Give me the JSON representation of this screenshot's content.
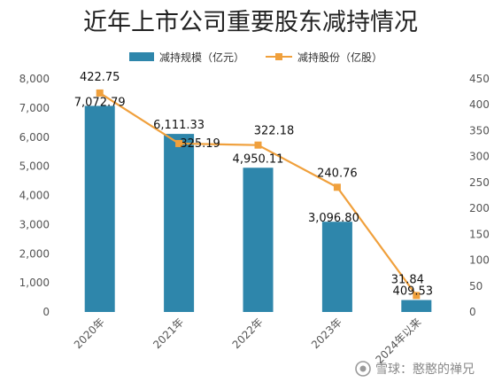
{
  "chart_data": {
    "type": "bar",
    "title": "近年上市公司重要股东减持情况",
    "categories": [
      "2020年",
      "2021年",
      "2022年",
      "2023年",
      "2024年以来"
    ],
    "series": [
      {
        "name": "减持规模（亿元）",
        "type": "bar",
        "axis": "left",
        "values": [
          7072.79,
          6111.33,
          4950.11,
          3096.8,
          409.53
        ],
        "labels": [
          "7,072.79",
          "6,111.33",
          "4,950.11",
          "3,096.80",
          "409.53"
        ],
        "color": "#2e86ab"
      },
      {
        "name": "减持股份（亿股）",
        "type": "line",
        "axis": "right",
        "values": [
          422.75,
          325.19,
          322.18,
          240.76,
          31.84
        ],
        "labels": [
          "422.75",
          "325.19",
          "322.18",
          "240.76",
          "31.84"
        ],
        "color": "#f0a03c"
      }
    ],
    "y_left": {
      "range": [
        0,
        8000
      ],
      "ticks": [
        "0",
        "1,000",
        "2,000",
        "3,000",
        "4,000",
        "5,000",
        "6,000",
        "7,000",
        "8,000"
      ]
    },
    "y_right": {
      "range": [
        0,
        450
      ],
      "ticks": [
        "0",
        "50",
        "100",
        "150",
        "200",
        "250",
        "300",
        "350",
        "400",
        "450"
      ]
    },
    "legend_position": "top",
    "grid": false
  },
  "watermark": {
    "text": "雪球：憨憨的禅兄",
    "icon": "snowball-logo-icon"
  }
}
